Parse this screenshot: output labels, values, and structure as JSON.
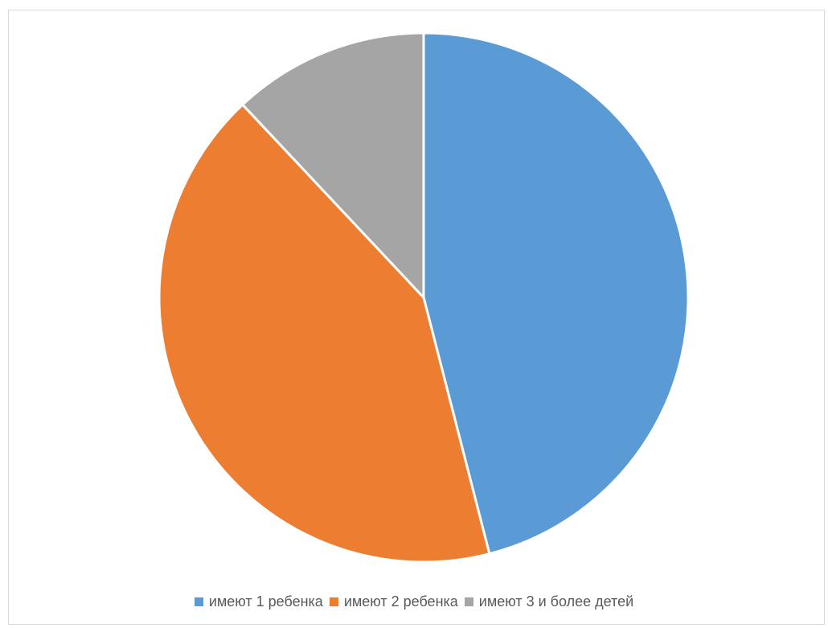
{
  "chart_data": {
    "type": "pie",
    "title": "",
    "categories": [
      "имеют 1 ребенка",
      "имеют 2 ребенка",
      "имеют 3 и более детей"
    ],
    "values": [
      46,
      42,
      12
    ],
    "colors": [
      "#5b9bd5",
      "#ed7d31",
      "#a5a5a5"
    ],
    "legend_position": "bottom",
    "start_angle": "top",
    "direction": "clockwise"
  }
}
